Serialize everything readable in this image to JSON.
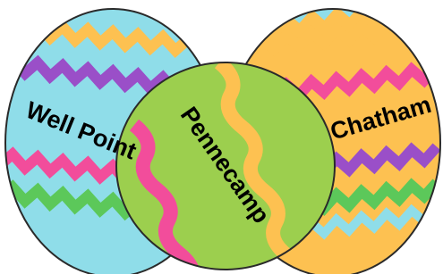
{
  "labels": {
    "left": "Well Point",
    "middle": "Pennecamp",
    "right": "Chatham"
  }
}
